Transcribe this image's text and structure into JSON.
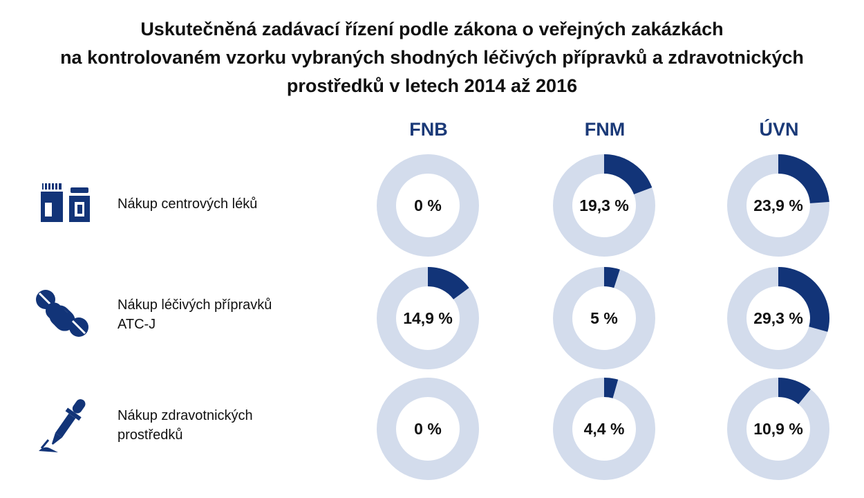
{
  "title_lines": [
    "Uskutečněná zadávací řízení podle zákona o veřejných zakázkách",
    "na kontrolovaném vzorku vybraných shodných léčivých přípravků a zdravotnických",
    "prostředků v letech 2014 až 2016"
  ],
  "columns": [
    "FNB",
    "FNM",
    "ÚVN"
  ],
  "rows": [
    {
      "icon": "medicine-bottles-icon",
      "label_lines": [
        "Nákup centrových léků"
      ]
    },
    {
      "icon": "pills-capsule-icon",
      "label_lines": [
        "Nákup léčivých přípravků",
        "ATC-J"
      ]
    },
    {
      "icon": "dropper-pipette-icon",
      "label_lines": [
        "Nákup zdravotnických",
        "prostředků"
      ]
    }
  ],
  "colors": {
    "accent": "#123478",
    "ring_background": "#d3dcec",
    "header_text": "#1b3a78"
  },
  "chart_data": {
    "type": "donut",
    "title": "Uskutečněná zadávací řízení podle zákona o veřejných zakázkách na kontrolovaném vzorku vybraných shodných léčivých přípravků a zdravotnických prostředků v letech 2014 až 2016",
    "columns": [
      "FNB",
      "FNM",
      "ÚVN"
    ],
    "rows": [
      "Nákup centrových léků",
      "Nákup léčivých přípravků ATC-J",
      "Nákup zdravotnických prostředků"
    ],
    "values": [
      [
        0,
        19.3,
        23.9
      ],
      [
        14.9,
        5,
        29.3
      ],
      [
        0,
        4.4,
        10.9
      ]
    ],
    "labels": [
      [
        "0 %",
        "19,3 %",
        "23,9 %"
      ],
      [
        "14,9 %",
        "5 %",
        "29,3 %"
      ],
      [
        "0 %",
        "4,4 %",
        "10,9 %"
      ]
    ],
    "unit": "%"
  }
}
